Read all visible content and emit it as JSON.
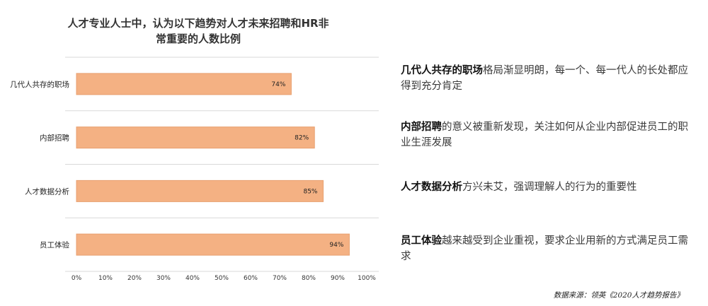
{
  "chart_data": {
    "type": "bar",
    "orientation": "horizontal",
    "title_lines": [
      "人才专业人士中，认为以下趋势对人才未来招聘和HR非",
      "常重要的人数比例"
    ],
    "categories": [
      "几代人共存的职场",
      "内部招聘",
      "人才数据分析",
      "员工体验"
    ],
    "values": [
      74,
      82,
      85,
      94
    ],
    "value_labels": [
      "74%",
      "82%",
      "85%",
      "94%"
    ],
    "xlim": [
      0,
      100
    ],
    "x_ticks": [
      0,
      10,
      20,
      30,
      40,
      50,
      60,
      70,
      80,
      90,
      100
    ],
    "x_tick_labels": [
      "0%",
      "10%",
      "20%",
      "30%",
      "40%",
      "50%",
      "60%",
      "70%",
      "80%",
      "90%",
      "100%"
    ],
    "grid": "horizontal separators",
    "colors": {
      "bar_fill": "#F4B183",
      "bar_stroke": "#E8A070",
      "grid": "#D9D9D9"
    }
  },
  "notes": [
    {
      "keyword": "几代人共存的职场",
      "text": "格局渐显明朗，每一个、每一代人的长处都应得到充分肯定"
    },
    {
      "keyword": "内部招聘",
      "text": "的意义被重新发现，关注如何从企业内部促进员工的职业生涯发展"
    },
    {
      "keyword": "人才数据分析",
      "text": "方兴未艾，强调理解人的行为的重要性"
    },
    {
      "keyword": "员工体验",
      "text": "越来越受到企业重视，要求企业用新的方式满足员工需求"
    }
  ],
  "source": "数据来源：领英《2020人才趋势报告》"
}
